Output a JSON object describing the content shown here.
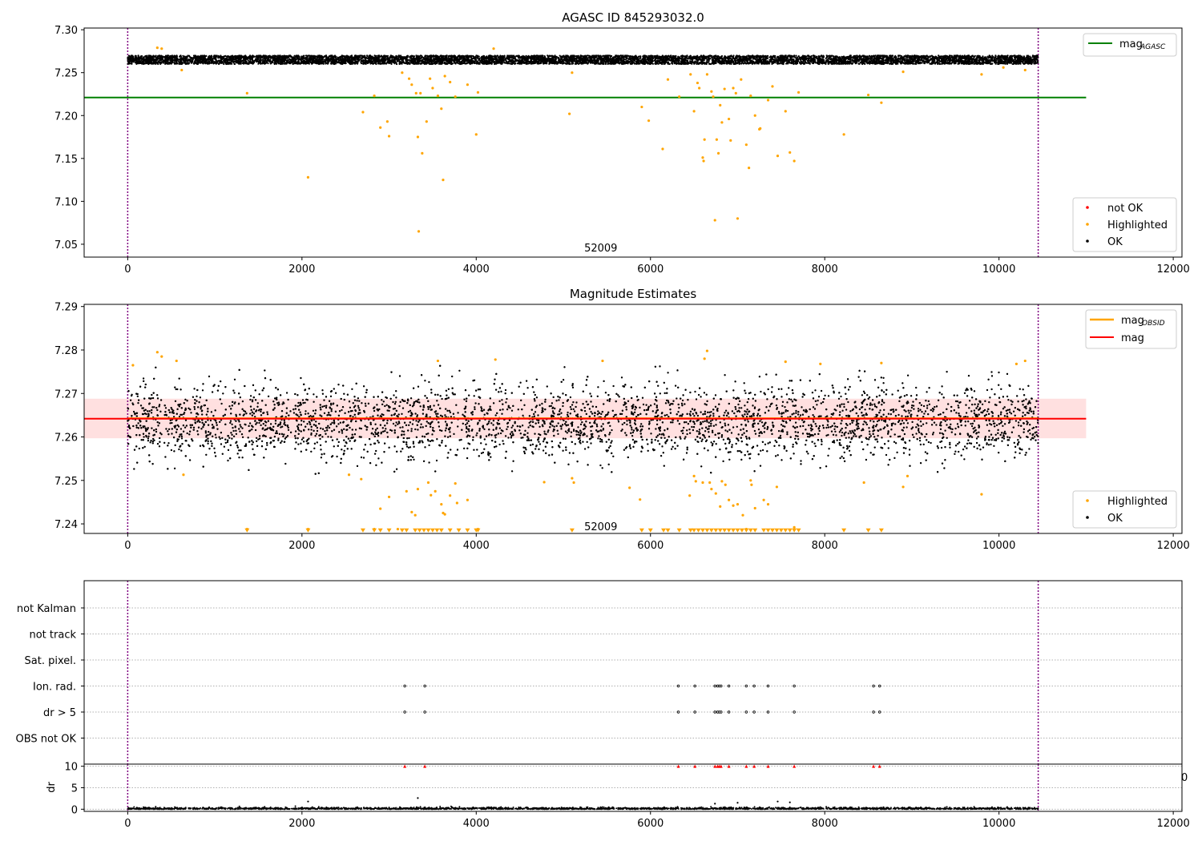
{
  "chart_data": [
    {
      "type": "scatter",
      "title": "AGASC ID 845293032.0",
      "xlabel": "",
      "ylabel": "",
      "xlim": [
        -500,
        12100
      ],
      "ylim": [
        7.035,
        7.302
      ],
      "x_ticks": [
        "0",
        "2000",
        "4000",
        "6000",
        "8000",
        "10000",
        "12000"
      ],
      "y_ticks": [
        "7.05",
        "7.10",
        "7.15",
        "7.20",
        "7.25",
        "7.30"
      ],
      "obsid_boundaries": [
        0,
        10450
      ],
      "obsid_label": {
        "text": "52009",
        "x": 5200,
        "y": 7.046
      },
      "reference_line": {
        "name": "mag_AGASC",
        "label_main": "mag",
        "label_sub": "AGASC",
        "y": 7.221,
        "x_range": [
          -500,
          11000
        ],
        "color": "#008000"
      },
      "ok_band": {
        "center": 7.265,
        "width": 0.01,
        "x_range": [
          0,
          10450
        ],
        "color": "#000000"
      },
      "series": [
        {
          "name": "not OK",
          "color": "#ff0000",
          "points": []
        },
        {
          "name": "Highlighted",
          "color": "#ffa500",
          "points": [
            [
              340,
              7.279
            ],
            [
              390,
              7.278
            ],
            [
              620,
              7.253
            ],
            [
              1370,
              7.226
            ],
            [
              2070,
              7.128
            ],
            [
              2700,
              7.204
            ],
            [
              2830,
              7.223
            ],
            [
              2900,
              7.186
            ],
            [
              2980,
              7.193
            ],
            [
              3000,
              7.176
            ],
            [
              3150,
              7.25
            ],
            [
              3230,
              7.243
            ],
            [
              3260,
              7.236
            ],
            [
              3310,
              7.226
            ],
            [
              3330,
              7.175
            ],
            [
              3340,
              7.065
            ],
            [
              3360,
              7.226
            ],
            [
              3380,
              7.156
            ],
            [
              3430,
              7.193
            ],
            [
              3470,
              7.243
            ],
            [
              3500,
              7.232
            ],
            [
              3560,
              7.223
            ],
            [
              3600,
              7.208
            ],
            [
              3620,
              7.125
            ],
            [
              3640,
              7.246
            ],
            [
              3700,
              7.239
            ],
            [
              3760,
              7.222
            ],
            [
              3900,
              7.236
            ],
            [
              4000,
              7.178
            ],
            [
              4020,
              7.227
            ],
            [
              4200,
              7.278
            ],
            [
              5070,
              7.202
            ],
            [
              5100,
              7.25
            ],
            [
              5900,
              7.21
            ],
            [
              5980,
              7.194
            ],
            [
              6140,
              7.161
            ],
            [
              6200,
              7.242
            ],
            [
              6330,
              7.222
            ],
            [
              6460,
              7.248
            ],
            [
              6500,
              7.205
            ],
            [
              6540,
              7.238
            ],
            [
              6560,
              7.232
            ],
            [
              6600,
              7.151
            ],
            [
              6610,
              7.147
            ],
            [
              6620,
              7.172
            ],
            [
              6650,
              7.248
            ],
            [
              6700,
              7.228
            ],
            [
              6720,
              7.222
            ],
            [
              6740,
              7.078
            ],
            [
              6760,
              7.172
            ],
            [
              6780,
              7.156
            ],
            [
              6800,
              7.212
            ],
            [
              6820,
              7.192
            ],
            [
              6850,
              7.231
            ],
            [
              6900,
              7.196
            ],
            [
              6920,
              7.171
            ],
            [
              6950,
              7.232
            ],
            [
              6980,
              7.226
            ],
            [
              7000,
              7.08
            ],
            [
              7040,
              7.242
            ],
            [
              7100,
              7.166
            ],
            [
              7130,
              7.139
            ],
            [
              7150,
              7.223
            ],
            [
              7200,
              7.2
            ],
            [
              7250,
              7.184
            ],
            [
              7260,
              7.185
            ],
            [
              7350,
              7.218
            ],
            [
              7400,
              7.234
            ],
            [
              7460,
              7.153
            ],
            [
              7550,
              7.205
            ],
            [
              7600,
              7.157
            ],
            [
              7650,
              7.147
            ],
            [
              7700,
              7.227
            ],
            [
              8220,
              7.178
            ],
            [
              8500,
              7.224
            ],
            [
              8650,
              7.215
            ],
            [
              8900,
              7.251
            ],
            [
              9800,
              7.248
            ],
            [
              10050,
              7.256
            ],
            [
              10300,
              7.253
            ]
          ]
        },
        {
          "name": "OK",
          "color": "#000000",
          "points": []
        }
      ]
    },
    {
      "type": "scatter",
      "title": "Magnitude Estimates",
      "xlabel": "",
      "ylabel": "",
      "xlim": [
        -500,
        12100
      ],
      "ylim": [
        7.2378,
        7.2905
      ],
      "x_ticks": [
        "0",
        "2000",
        "4000",
        "6000",
        "8000",
        "10000",
        "12000"
      ],
      "y_ticks": [
        "7.24",
        "7.25",
        "7.26",
        "7.27",
        "7.28",
        "7.29"
      ],
      "obsid_boundaries": [
        0,
        10450
      ],
      "obsid_label": {
        "text": "52009",
        "x": 5200,
        "y": 7.2395
      },
      "lines": [
        {
          "name": "mag_OBSID",
          "label_main": "mag",
          "label_sub": "OBSID",
          "y": 7.2643,
          "x_range": [
            0,
            10450
          ],
          "color": "#ffa500"
        },
        {
          "name": "mag",
          "label_main": "mag",
          "label_sub": "",
          "y": 7.2642,
          "x_range": [
            -500,
            11000
          ],
          "color": "#ff0000"
        }
      ],
      "error_band": {
        "y_low": 7.2597,
        "y_high": 7.2688,
        "x_range": [
          -500,
          11000
        ],
        "color": "#ffcccc"
      },
      "ok_distribution": {
        "center": 7.2635,
        "spread": 0.0042,
        "x_range": [
          0,
          10450
        ],
        "color": "#000000"
      },
      "series": [
        {
          "name": "Highlighted",
          "color": "#ffa500",
          "points": [
            [
              60,
              7.2765
            ],
            [
              340,
              7.2795
            ],
            [
              390,
              7.2785
            ],
            [
              560,
              7.2775
            ],
            [
              640,
              7.2513
            ],
            [
              1370,
              7.2388
            ],
            [
              2070,
              7.2388
            ],
            [
              2540,
              7.2513
            ],
            [
              2680,
              7.2503
            ],
            [
              2830,
              7.2388
            ],
            [
              2900,
              7.2435
            ],
            [
              3000,
              7.2462
            ],
            [
              3100,
              7.2388
            ],
            [
              3200,
              7.2475
            ],
            [
              3260,
              7.2427
            ],
            [
              3300,
              7.242
            ],
            [
              3330,
              7.248
            ],
            [
              3450,
              7.2495
            ],
            [
              3480,
              7.2466
            ],
            [
              3530,
              7.2475
            ],
            [
              3560,
              7.2775
            ],
            [
              3600,
              7.2445
            ],
            [
              3620,
              7.2425
            ],
            [
              3640,
              7.2422
            ],
            [
              3700,
              7.2465
            ],
            [
              3760,
              7.2493
            ],
            [
              3780,
              7.2448
            ],
            [
              3900,
              7.2455
            ],
            [
              4020,
              7.2388
            ],
            [
              4220,
              7.2778
            ],
            [
              4780,
              7.2496
            ],
            [
              5100,
              7.2505
            ],
            [
              5120,
              7.2495
            ],
            [
              5450,
              7.2775
            ],
            [
              5760,
              7.2483
            ],
            [
              5880,
              7.2456
            ],
            [
              6450,
              7.2465
            ],
            [
              6500,
              7.251
            ],
            [
              6520,
              7.2498
            ],
            [
              6600,
              7.2495
            ],
            [
              6620,
              7.278
            ],
            [
              6650,
              7.2798
            ],
            [
              6680,
              7.2495
            ],
            [
              6700,
              7.248
            ],
            [
              6750,
              7.247
            ],
            [
              6800,
              7.244
            ],
            [
              6820,
              7.2498
            ],
            [
              6860,
              7.249
            ],
            [
              6900,
              7.2455
            ],
            [
              6950,
              7.2442
            ],
            [
              7000,
              7.2445
            ],
            [
              7060,
              7.242
            ],
            [
              7100,
              7.2388
            ],
            [
              7150,
              7.25
            ],
            [
              7160,
              7.249
            ],
            [
              7200,
              7.2436
            ],
            [
              7300,
              7.2455
            ],
            [
              7350,
              7.2445
            ],
            [
              7450,
              7.2485
            ],
            [
              7550,
              7.2773
            ],
            [
              7650,
              7.2392
            ],
            [
              7950,
              7.2768
            ],
            [
              8450,
              7.2495
            ],
            [
              8650,
              7.277
            ],
            [
              8900,
              7.2485
            ],
            [
              8950,
              7.251
            ],
            [
              9800,
              7.2468
            ],
            [
              10200,
              7.2768
            ],
            [
              10300,
              7.2775
            ]
          ]
        },
        {
          "name": "OK",
          "color": "#000000",
          "points": []
        }
      ],
      "lower_limit_markers": {
        "color": "#ffa500",
        "y": 7.2385,
        "x": [
          1370,
          2070,
          2700,
          2830,
          2900,
          3000,
          3150,
          3200,
          3300,
          3350,
          3400,
          3450,
          3500,
          3550,
          3600,
          3700,
          3800,
          3900,
          4000,
          4020,
          5100,
          5900,
          6000,
          6150,
          6200,
          6330,
          6460,
          6500,
          6550,
          6600,
          6650,
          6700,
          6750,
          6800,
          6850,
          6900,
          6950,
          7000,
          7050,
          7100,
          7150,
          7200,
          7300,
          7350,
          7400,
          7450,
          7500,
          7550,
          7600,
          7650,
          7700,
          8220,
          8500,
          8650
        ]
      }
    },
    {
      "type": "scatter",
      "title": "",
      "xlabel": "",
      "ylabel": "",
      "xlim": [
        -500,
        12100
      ],
      "categories": [
        "not Kalman",
        "not track",
        "Sat. pixel.",
        "Ion. rad.",
        "dr > 5",
        "OBS not OK"
      ],
      "obsid_boundaries": [
        0,
        10450
      ],
      "flag_points": {
        "Ion. rad.": [
          3180,
          3410,
          6320,
          6510,
          6740,
          6770,
          6790,
          6810,
          6900,
          7100,
          7190,
          7350,
          7650,
          8560,
          8630
        ],
        "dr > 5": [
          3180,
          3410,
          6320,
          6510,
          6740,
          6770,
          6790,
          6810,
          6900,
          7100,
          7190,
          7350,
          7650,
          8560,
          8630
        ]
      }
    },
    {
      "type": "scatter",
      "title": "",
      "xlabel": "",
      "ylabel": "dr",
      "xlim": [
        -500,
        12100
      ],
      "ylim": [
        -0.5,
        10.5
      ],
      "x_ticks": [
        "0",
        "2000",
        "4000",
        "6000",
        "8000",
        "10000",
        "12000"
      ],
      "y_ticks": [
        "0",
        "5",
        "10"
      ],
      "obsid_boundaries": [
        0,
        10450
      ],
      "capped_markers": {
        "color": "#ff0000",
        "y": 10,
        "x": [
          3180,
          3410,
          6320,
          6510,
          6740,
          6770,
          6790,
          6810,
          6900,
          7100,
          7190,
          7350,
          7650,
          8560,
          8630
        ]
      },
      "outliers": [
        [
          2070,
          1.8
        ],
        [
          3330,
          2.6
        ],
        [
          6740,
          1.3
        ],
        [
          7000,
          1.5
        ],
        [
          7460,
          1.8
        ],
        [
          7600,
          1.6
        ]
      ],
      "edge_label": "0"
    }
  ]
}
